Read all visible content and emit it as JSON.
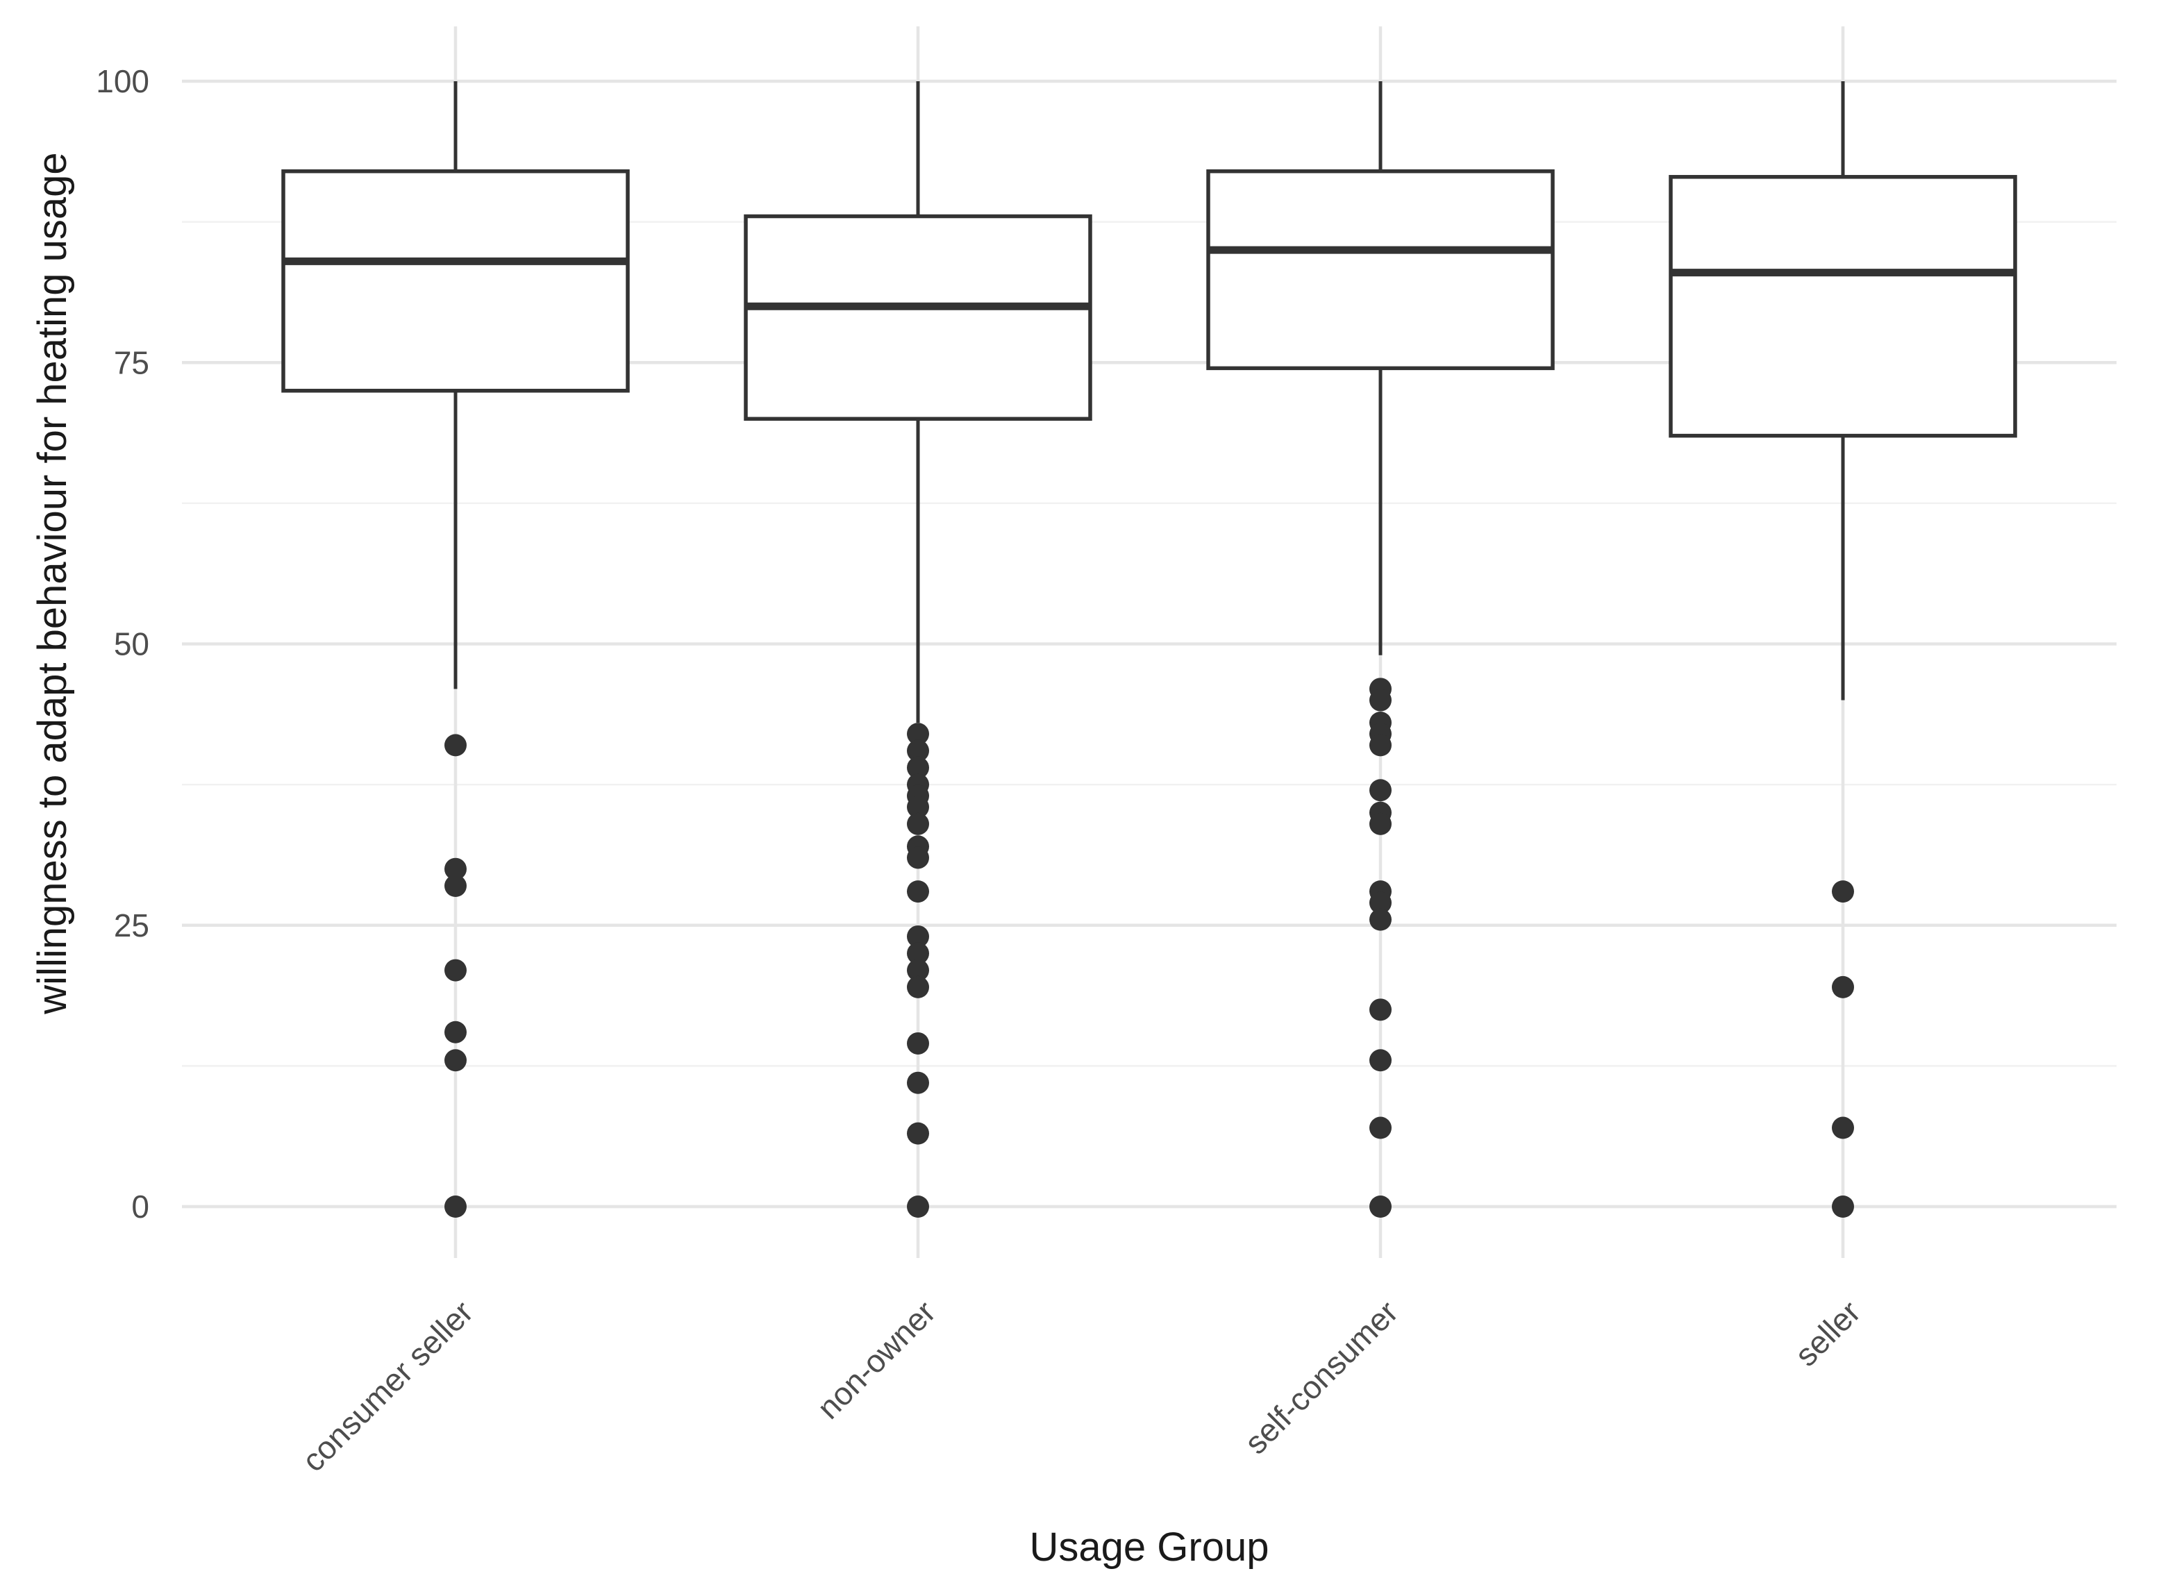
{
  "chart_data": {
    "type": "boxplot",
    "title": "",
    "xlabel": "Usage Group",
    "ylabel": "willingness to adapt behaviour for heating usage",
    "categories": [
      "consumer seller",
      "non-owner",
      "self-consumer",
      "seller"
    ],
    "ylim": [
      0,
      100
    ],
    "yticks": [
      0,
      25,
      50,
      75,
      100
    ],
    "yticks_minor": [
      12.5,
      37.5,
      62.5,
      87.5
    ],
    "legend": "none",
    "grid": {
      "horizontal_major": true,
      "horizontal_minor": true,
      "vertical_major_at_categories": true
    },
    "x_tick_label_rotation_deg": 45,
    "series": [
      {
        "category": "consumer seller",
        "whisker_low": 46,
        "q1": 72.5,
        "median": 84,
        "q3": 92,
        "whisker_high": 100,
        "outliers": [
          41,
          30,
          28.5,
          21,
          15.5,
          13,
          0
        ]
      },
      {
        "category": "non-owner",
        "whisker_low": 43,
        "q1": 70,
        "median": 80,
        "q3": 88,
        "whisker_high": 100,
        "outliers": [
          42,
          40.5,
          39,
          37.5,
          36.5,
          35.5,
          34,
          32,
          31,
          28,
          24,
          22.5,
          21,
          19.5,
          14.5,
          11,
          6.5,
          0
        ]
      },
      {
        "category": "self-consumer",
        "whisker_low": 49,
        "q1": 74.5,
        "median": 85,
        "q3": 92,
        "whisker_high": 100,
        "outliers": [
          46,
          45,
          43,
          42,
          41,
          37,
          35,
          34,
          28,
          27,
          25.5,
          17.5,
          13,
          7,
          0
        ]
      },
      {
        "category": "seller",
        "whisker_low": 45,
        "q1": 68.5,
        "median": 83,
        "q3": 91.5,
        "whisker_high": 100,
        "outliers": [
          28,
          19.5,
          7,
          0
        ]
      }
    ],
    "colors": {
      "box_stroke": "#333333",
      "box_fill": "#ffffff",
      "median_stroke": "#333333",
      "whisker_stroke": "#333333",
      "outlier_fill": "#333333",
      "grid_major": "#e5e5e5",
      "grid_minor": "#f1f1f1",
      "tick_label": "#4d4d4d",
      "axis_title": "#1a1a1a",
      "background": "#ffffff"
    }
  }
}
